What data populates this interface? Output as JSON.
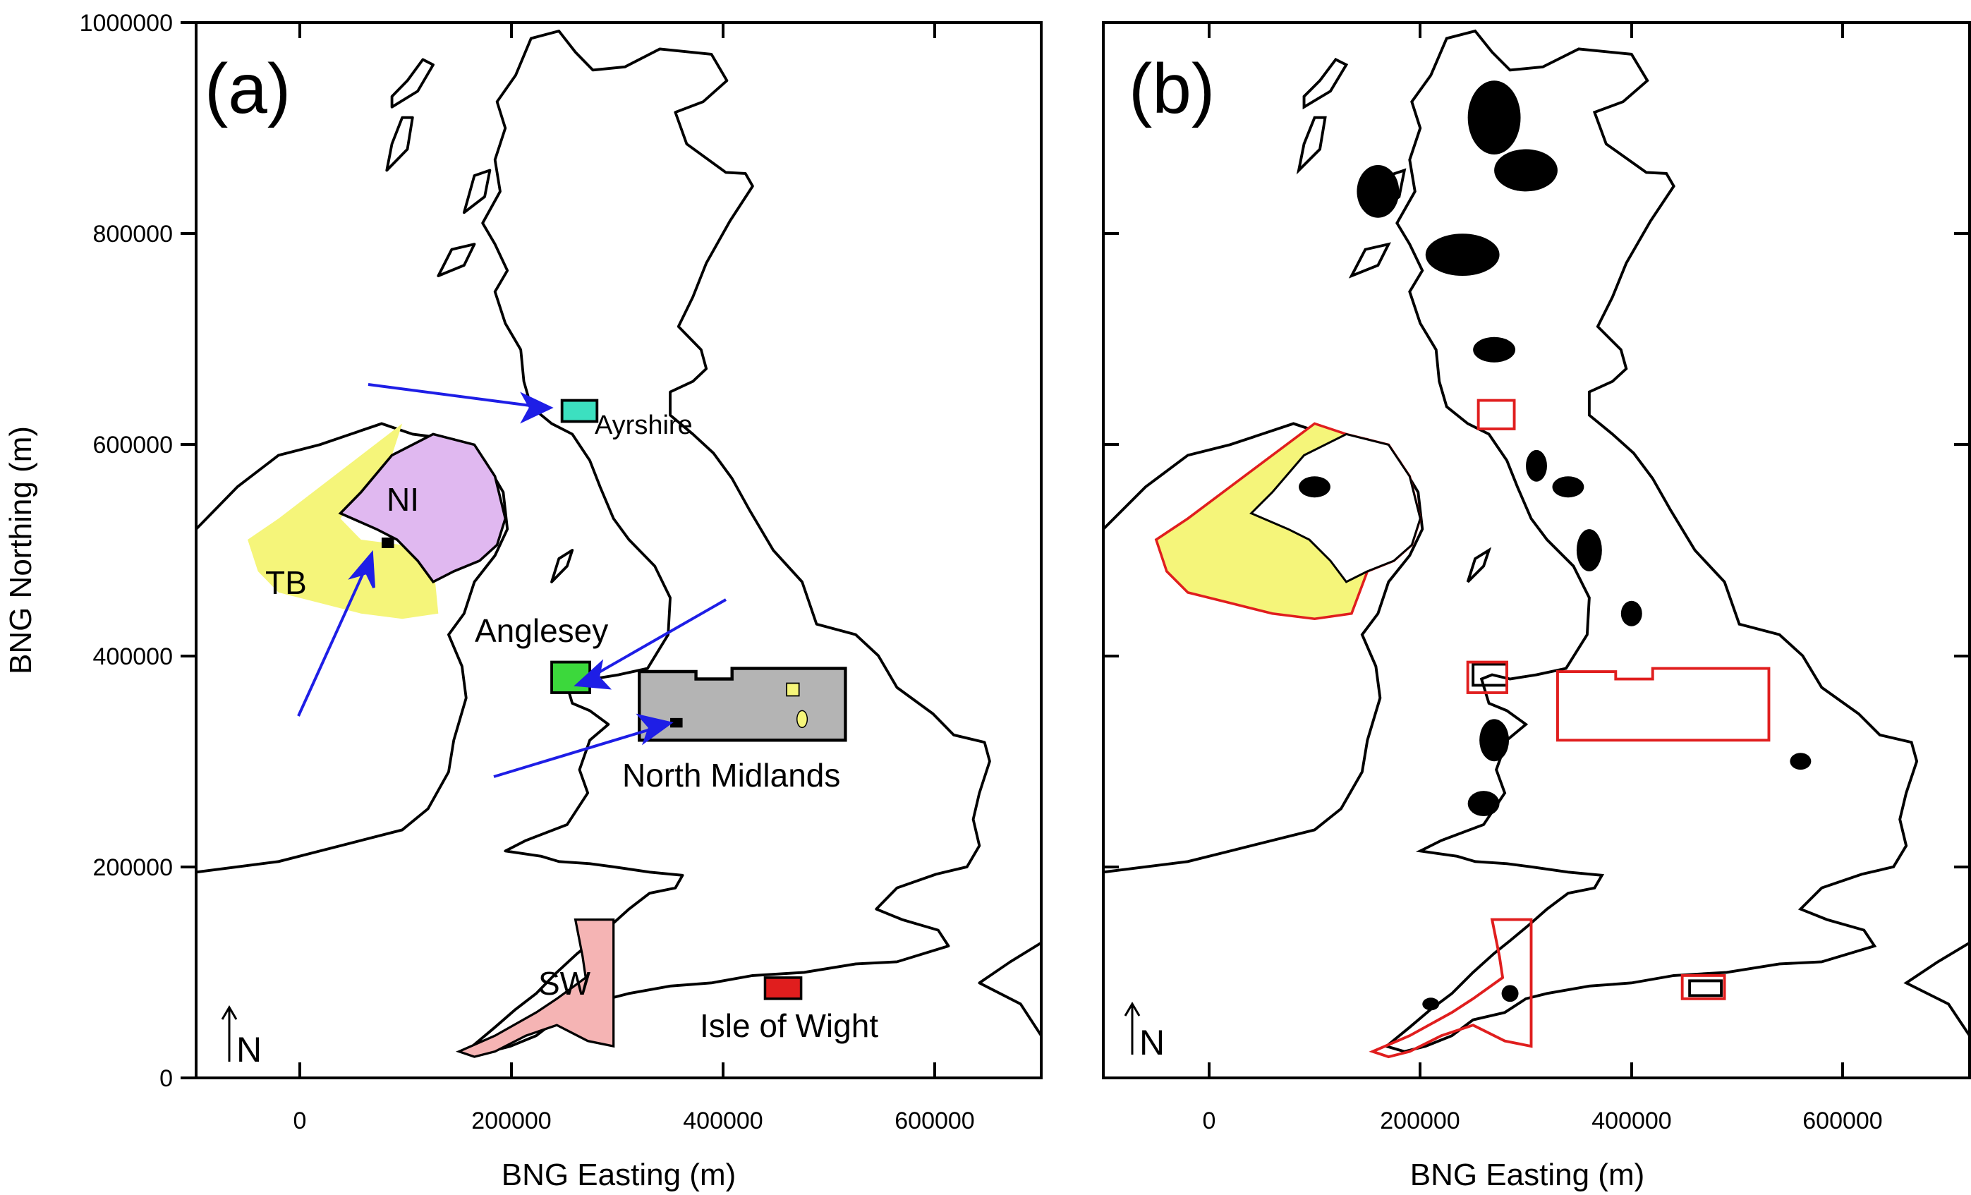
{
  "chart_data": [
    {
      "type": "map",
      "panel_label": "(a)",
      "xlabel": "BNG Easting (m)",
      "ylabel": "BNG Northing (m)",
      "xlim": [
        -120000,
        700000
      ],
      "ylim": [
        0,
        1000000
      ],
      "x_ticks": [
        "0",
        "200000",
        "400000",
        "600000"
      ],
      "y_ticks": [
        "0",
        "200000",
        "400000",
        "600000",
        "800000",
        "1000000"
      ],
      "north_arrow": "N",
      "regions": [
        {
          "name": "NI",
          "color": "#e0b8f0"
        },
        {
          "name": "TB",
          "color": "#f5f57a"
        },
        {
          "name": "Ayrshire",
          "color": "#3ce0c0"
        },
        {
          "name": "Anglesey",
          "color": "#3cd83c"
        },
        {
          "name": "North Midlands",
          "color": "#b4b4b4"
        },
        {
          "name": "SW",
          "color": "#f5b4b4"
        },
        {
          "name": "Isle of Wight",
          "color": "#e01e1e"
        }
      ],
      "arrow_color": "#1e1ee6"
    },
    {
      "type": "map",
      "panel_label": "(b)",
      "xlabel": "BNG Easting (m)",
      "xlim": [
        -120000,
        700000
      ],
      "ylim": [
        0,
        1000000
      ],
      "x_ticks": [
        "0",
        "200000",
        "400000",
        "600000"
      ],
      "north_arrow": "N",
      "outline_color": "#e01e1e",
      "fill_color": "#f5f57a"
    }
  ]
}
